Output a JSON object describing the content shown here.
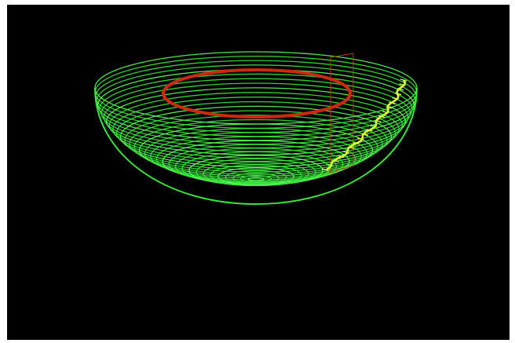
{
  "viewport": {
    "background": "#000000",
    "frame_color": "#ffffff"
  },
  "scene": {
    "bowl_wireframe": {
      "color": "#39e639",
      "highlight_color": "#5cff5c"
    },
    "toolpath_ring": {
      "color": "#cc2a10"
    },
    "tool_marker": {
      "color": "#b43a14"
    },
    "plunge_path": {
      "color": "#d8ff3a"
    }
  }
}
